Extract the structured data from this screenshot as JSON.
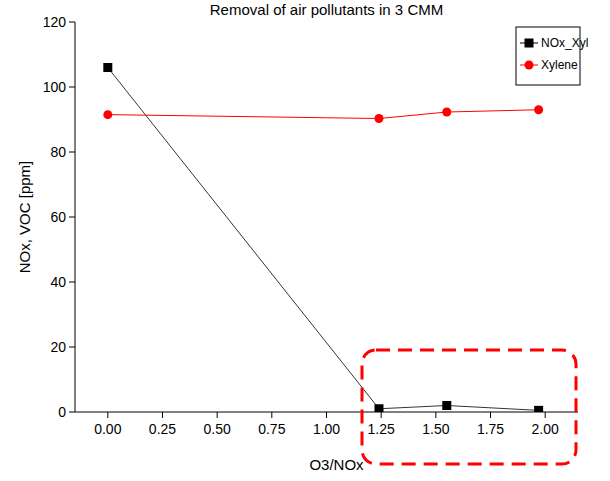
{
  "chart_data": {
    "type": "line",
    "title": "Removal of air pollutants in 3 CMM",
    "x_label": "O3/NOx",
    "y_label": "NOx, VOC [ppm]",
    "x": [
      0,
      1.24,
      1.55,
      1.97
    ],
    "series": [
      {
        "name": "NOx_Xyl",
        "color": "#000000",
        "marker": "square",
        "line_style": "solid",
        "values": [
          106,
          1,
          2,
          0.5
        ]
      },
      {
        "name": "Xylene",
        "color": "#ff0000",
        "marker": "circle",
        "line_style": "solid",
        "values": [
          91.5,
          90.3,
          92.3,
          93
        ]
      }
    ],
    "xlim": [
      -0.15,
      2.15
    ],
    "xticks": [
      {
        "value": 0,
        "label": "0.00"
      },
      {
        "value": 0.25,
        "label": "0.25"
      },
      {
        "value": 0.5,
        "label": "0.50"
      },
      {
        "value": 0.75,
        "label": "0.75"
      },
      {
        "value": 1,
        "label": "1.00"
      },
      {
        "value": 1.25,
        "label": "1.25"
      },
      {
        "value": 1.5,
        "label": "1.50"
      },
      {
        "value": 1.75,
        "label": "1.75"
      },
      {
        "value": 2,
        "label": "2.00"
      }
    ],
    "ylim": [
      0,
      120
    ],
    "yticks": [
      0,
      20,
      40,
      60,
      80,
      100,
      120
    ],
    "grid": false,
    "legend": "upper right"
  }
}
